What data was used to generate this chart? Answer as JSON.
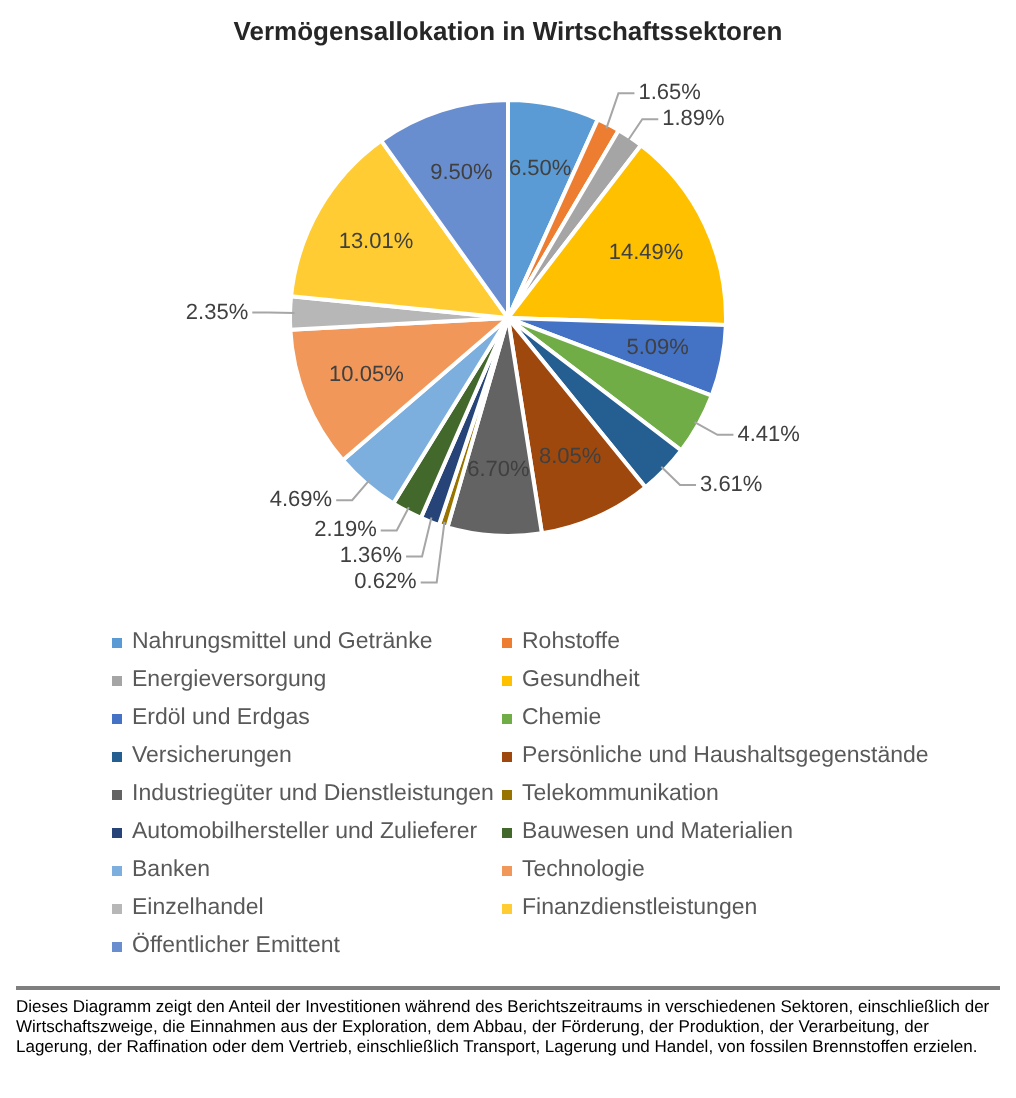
{
  "chart_data": {
    "type": "pie",
    "title": "Vermögensallokation in Wirtschaftssektoren",
    "categories": [
      "Nahrungsmittel und Getränke",
      "Rohstoffe",
      "Energieversorgung",
      "Gesundheit",
      "Erdöl und Erdgas",
      "Chemie",
      "Versicherungen",
      "Persönliche und Haushaltsgegenstände",
      "Industriegüter und Dienstleistungen",
      "Telekommunikation",
      "Automobilhersteller und Zulieferer",
      "Bauwesen und Materialien",
      "Banken",
      "Technologie",
      "Einzelhandel",
      "Finanzdienstleistungen",
      "Öffentlicher Emittent"
    ],
    "values": [
      6.5,
      1.65,
      1.89,
      14.49,
      5.09,
      4.41,
      3.61,
      8.05,
      6.7,
      0.62,
      1.36,
      2.19,
      4.69,
      10.05,
      2.35,
      13.01,
      9.5
    ],
    "value_labels": [
      "6.50%",
      "1.65%",
      "1.89%",
      "14.49%",
      "5.09%",
      "4.41%",
      "3.61%",
      "8.05%",
      "6.70%",
      "0.62%",
      "1.36%",
      "2.19%",
      "4.69%",
      "10.05%",
      "2.35%",
      "13.01%",
      "9.50%"
    ],
    "colors": [
      "#5b9bd5",
      "#ed7d31",
      "#a5a5a5",
      "#ffc000",
      "#4472c4",
      "#70ad47",
      "#255e91",
      "#9e480e",
      "#636363",
      "#997300",
      "#264478",
      "#43682b",
      "#7cafdd",
      "#f1975a",
      "#b7b7b7",
      "#ffcd33",
      "#698ed0"
    ],
    "legend": "bottom",
    "annotations": [
      "Dieses Diagramm zeigt den Anteil der Investitionen während des Berichtszeitraums in verschiedenen Sektoren, einschließlich der Wirtschaftszweige, die Einnahmen aus der Exploration, dem Abbau, der Förderung, der Produktion, der Verarbeitung, der Lagerung, der Raffination oder dem Vertrieb, einschließlich Transport, Lagerung und Handel, von fossilen Brennstoffen erzielen."
    ]
  }
}
